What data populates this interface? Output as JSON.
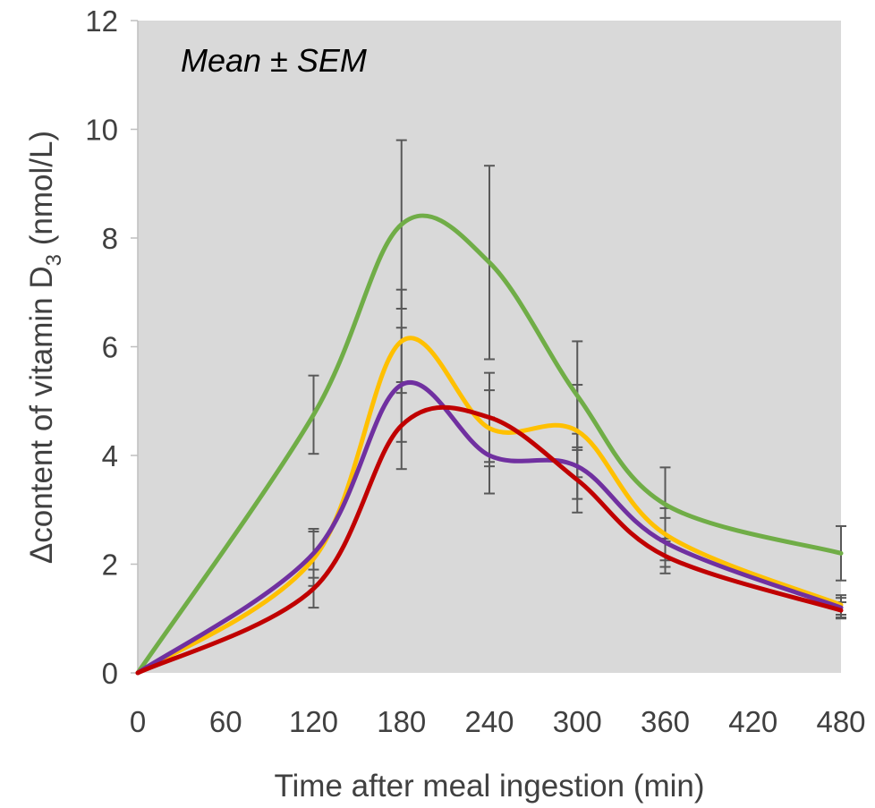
{
  "chart_data": {
    "type": "line",
    "title": "",
    "annotation": "Mean ± SEM",
    "xlabel": "Time after meal ingestion (min)",
    "ylabel": {
      "prefix": "Δcontent of vitamin D",
      "subscript": "3",
      "suffix": " (nmol/L)"
    },
    "xlim": [
      0,
      480
    ],
    "ylim": [
      0,
      12
    ],
    "x_ticks": [
      0,
      60,
      120,
      180,
      240,
      300,
      360,
      420,
      480
    ],
    "y_ticks": [
      0,
      2,
      4,
      6,
      8,
      10,
      12
    ],
    "grid": false,
    "legend": "none",
    "plot_background": "#d9d9d9",
    "x": [
      0,
      120,
      180,
      240,
      300,
      360,
      480
    ],
    "series": [
      {
        "color": "#70ad47",
        "values": [
          0,
          4.75,
          8.25,
          7.55,
          5.1,
          3.1,
          2.2
        ],
        "error": [
          0,
          0.72,
          1.55,
          1.78,
          1.0,
          0.68,
          0.5
        ]
      },
      {
        "color": "#ffc000",
        "values": [
          0,
          2.1,
          6.1,
          4.5,
          4.45,
          2.55,
          1.25
        ],
        "error": [
          0,
          0.5,
          0.95,
          0.7,
          0.85,
          0.48,
          0.18
        ]
      },
      {
        "color": "#7030a0",
        "values": [
          0,
          2.2,
          5.3,
          4.0,
          3.8,
          2.4,
          1.2
        ],
        "error": [
          0,
          0.45,
          1.05,
          0.7,
          0.6,
          0.45,
          0.18
        ]
      },
      {
        "color": "#c00000",
        "values": [
          0,
          1.55,
          4.55,
          4.7,
          3.55,
          2.15,
          1.15
        ],
        "error": [
          0,
          0.35,
          0.8,
          0.82,
          0.6,
          0.32,
          0.15
        ]
      }
    ]
  }
}
